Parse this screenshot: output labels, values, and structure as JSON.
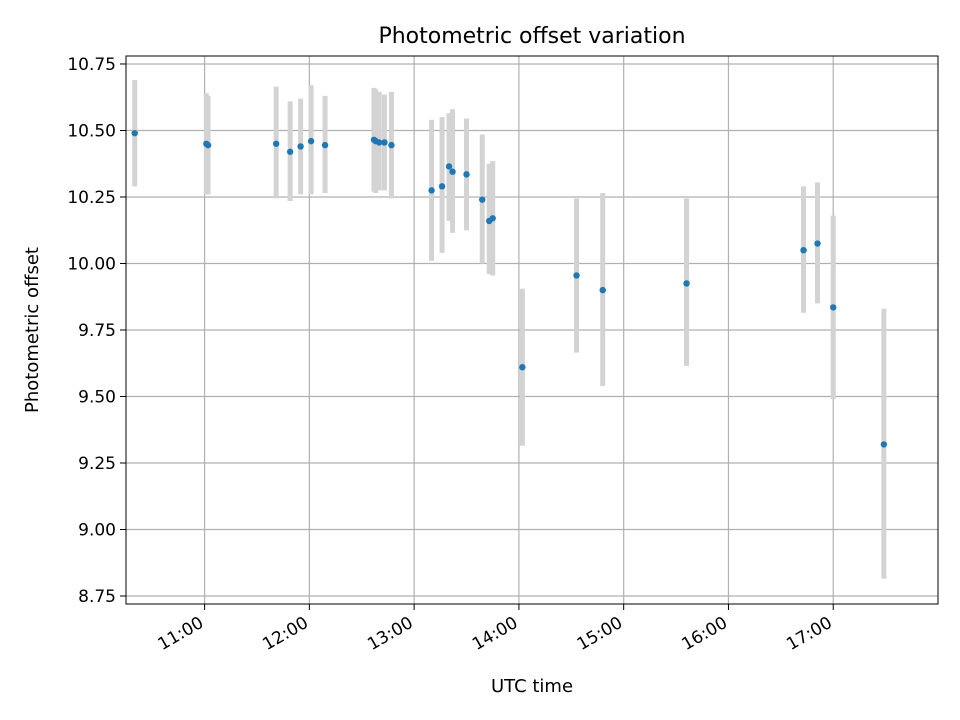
{
  "chart_data": {
    "type": "scatter",
    "title": "Photometric offset variation",
    "xlabel": "UTC time",
    "ylabel": "Photometric offset",
    "x_axis": {
      "type": "time",
      "min": "10:15",
      "max": "18:00",
      "ticks": [
        "11:00",
        "12:00",
        "13:00",
        "14:00",
        "15:00",
        "16:00",
        "17:00"
      ]
    },
    "y_axis": {
      "min": 8.72,
      "max": 10.78,
      "ticks": [
        "8.75",
        "9.00",
        "9.25",
        "9.50",
        "9.75",
        "10.00",
        "10.25",
        "10.50",
        "10.75"
      ]
    },
    "grid": true,
    "colors": {
      "points": "#1f77b4",
      "errorbars": "#d3d3d3",
      "grid": "#b0b0b0"
    },
    "points": [
      {
        "x": "10:20",
        "y": 10.49,
        "lo": 10.29,
        "hi": 10.69
      },
      {
        "x": "11:01",
        "y": 10.45,
        "lo": 10.26,
        "hi": 10.64
      },
      {
        "x": "11:02",
        "y": 10.445,
        "lo": 10.26,
        "hi": 10.63
      },
      {
        "x": "11:41",
        "y": 10.45,
        "lo": 10.245,
        "hi": 10.665
      },
      {
        "x": "11:49",
        "y": 10.42,
        "lo": 10.235,
        "hi": 10.61
      },
      {
        "x": "11:55",
        "y": 10.44,
        "lo": 10.26,
        "hi": 10.62
      },
      {
        "x": "12:01",
        "y": 10.46,
        "lo": 10.26,
        "hi": 10.67
      },
      {
        "x": "12:09",
        "y": 10.445,
        "lo": 10.265,
        "hi": 10.63
      },
      {
        "x": "12:37",
        "y": 10.465,
        "lo": 10.27,
        "hi": 10.66
      },
      {
        "x": "12:38",
        "y": 10.46,
        "lo": 10.265,
        "hi": 10.655
      },
      {
        "x": "12:40",
        "y": 10.455,
        "lo": 10.275,
        "hi": 10.645
      },
      {
        "x": "12:43",
        "y": 10.455,
        "lo": 10.275,
        "hi": 10.635
      },
      {
        "x": "12:47",
        "y": 10.445,
        "lo": 10.245,
        "hi": 10.645
      },
      {
        "x": "13:10",
        "y": 10.275,
        "lo": 10.01,
        "hi": 10.54
      },
      {
        "x": "13:16",
        "y": 10.29,
        "lo": 10.04,
        "hi": 10.55
      },
      {
        "x": "13:20",
        "y": 10.365,
        "lo": 10.16,
        "hi": 10.565
      },
      {
        "x": "13:22",
        "y": 10.345,
        "lo": 10.115,
        "hi": 10.58
      },
      {
        "x": "13:30",
        "y": 10.335,
        "lo": 10.125,
        "hi": 10.545
      },
      {
        "x": "13:39",
        "y": 10.24,
        "lo": 10.0,
        "hi": 10.485
      },
      {
        "x": "13:43",
        "y": 10.16,
        "lo": 9.96,
        "hi": 10.375
      },
      {
        "x": "13:45",
        "y": 10.17,
        "lo": 9.955,
        "hi": 10.385
      },
      {
        "x": "14:02",
        "y": 9.61,
        "lo": 9.315,
        "hi": 9.905
      },
      {
        "x": "14:33",
        "y": 9.955,
        "lo": 9.665,
        "hi": 10.245
      },
      {
        "x": "14:48",
        "y": 9.9,
        "lo": 9.54,
        "hi": 10.265
      },
      {
        "x": "15:36",
        "y": 9.925,
        "lo": 9.615,
        "hi": 10.245
      },
      {
        "x": "16:43",
        "y": 10.05,
        "lo": 9.815,
        "hi": 10.29
      },
      {
        "x": "16:51",
        "y": 10.075,
        "lo": 9.85,
        "hi": 10.305
      },
      {
        "x": "17:00",
        "y": 9.835,
        "lo": 9.49,
        "hi": 10.18
      },
      {
        "x": "17:29",
        "y": 9.32,
        "lo": 8.815,
        "hi": 9.83
      }
    ]
  }
}
